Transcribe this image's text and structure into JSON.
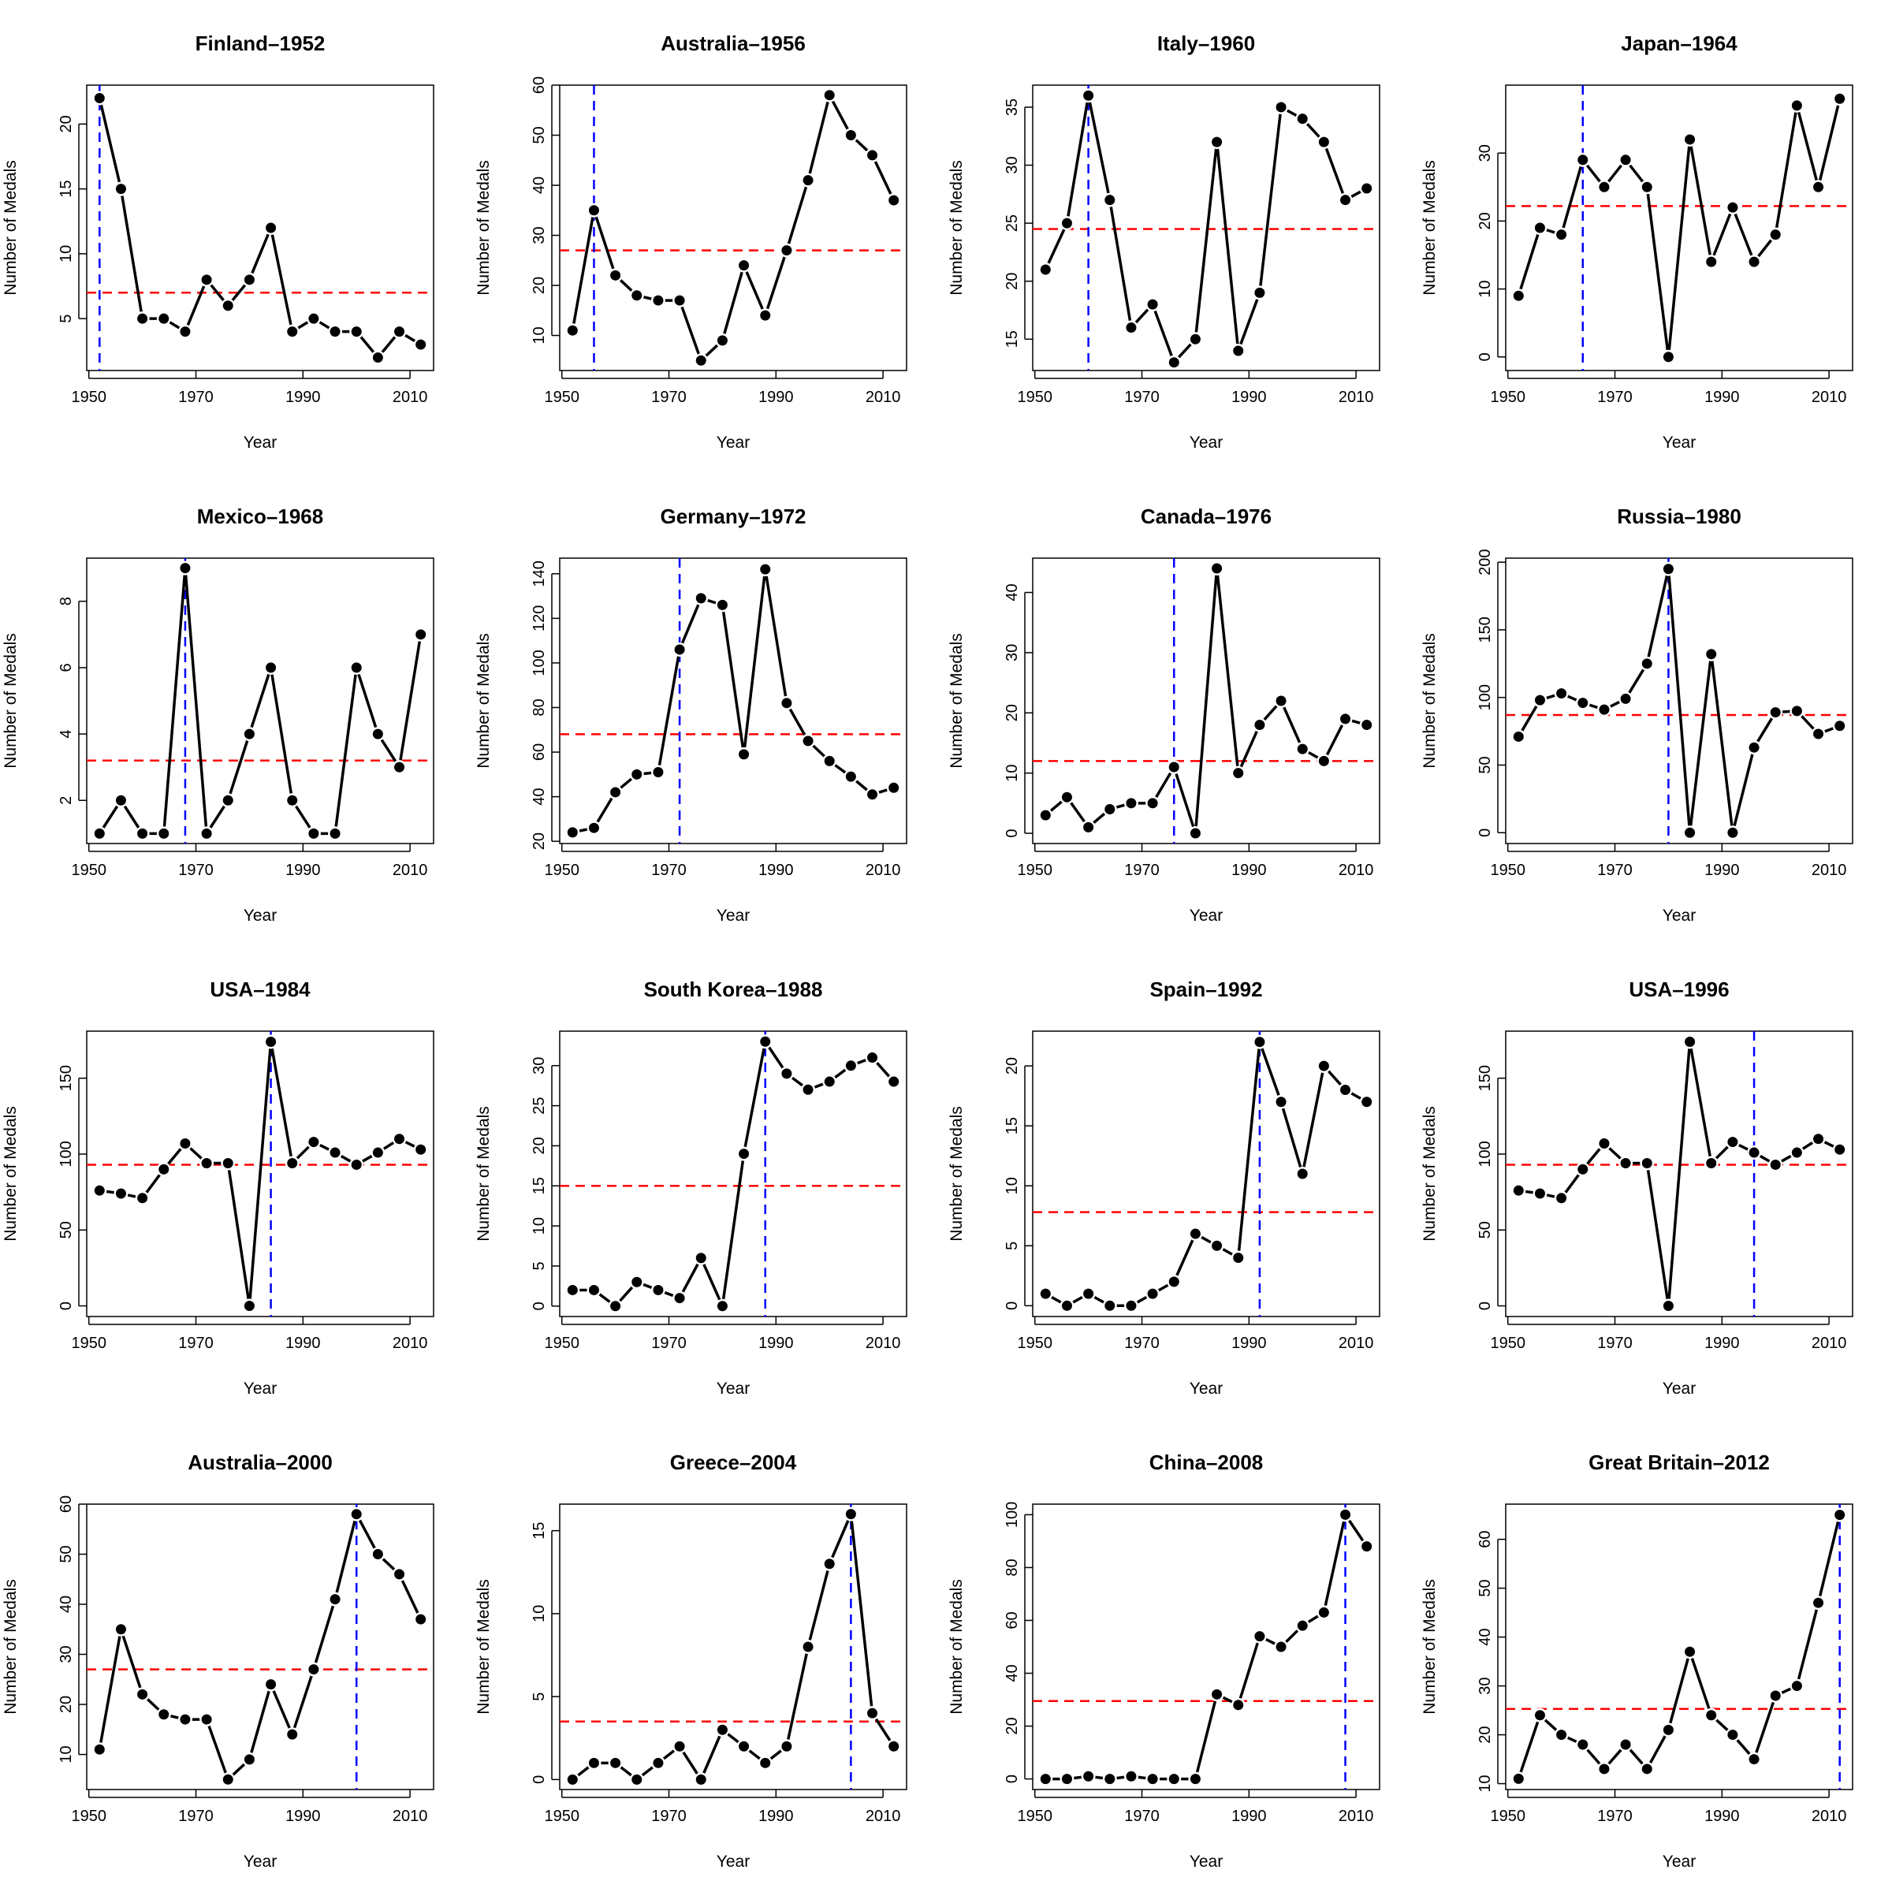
{
  "chart_data": [
    {
      "type": "line",
      "title": "Finland–1952",
      "xlabel": "Year",
      "ylabel": "Number of Medals",
      "host_year": 1952,
      "mean": 7,
      "ylim": [
        1,
        23
      ],
      "yticks": [
        5,
        10,
        15,
        20
      ],
      "x": [
        1952,
        1956,
        1960,
        1964,
        1968,
        1972,
        1976,
        1980,
        1984,
        1988,
        1992,
        1996,
        2000,
        2004,
        2008,
        2012
      ],
      "values": [
        22,
        15,
        5,
        5,
        4,
        8,
        6,
        8,
        12,
        4,
        5,
        4,
        4,
        2,
        4,
        3
      ]
    },
    {
      "type": "line",
      "title": "Australia–1956",
      "xlabel": "Year",
      "ylabel": "Number of Medals",
      "host_year": 1956,
      "mean": 27,
      "ylim": [
        3,
        60
      ],
      "yticks": [
        10,
        20,
        30,
        40,
        50,
        60
      ],
      "x": [
        1952,
        1956,
        1960,
        1964,
        1968,
        1972,
        1976,
        1980,
        1984,
        1988,
        1992,
        1996,
        2000,
        2004,
        2008,
        2012
      ],
      "values": [
        11,
        35,
        22,
        18,
        17,
        17,
        5,
        9,
        24,
        14,
        27,
        41,
        58,
        50,
        46,
        37
      ]
    },
    {
      "type": "line",
      "title": "Italy–1960",
      "xlabel": "Year",
      "ylabel": "Number of Medals",
      "host_year": 1960,
      "mean": 24.5,
      "ylim": [
        12.3,
        36.9
      ],
      "yticks": [
        15,
        20,
        25,
        30,
        35
      ],
      "x": [
        1952,
        1956,
        1960,
        1964,
        1968,
        1972,
        1976,
        1980,
        1984,
        1988,
        1992,
        1996,
        2000,
        2004,
        2008,
        2012
      ],
      "values": [
        21,
        25,
        36,
        27,
        16,
        18,
        13,
        15,
        32,
        14,
        19,
        35,
        34,
        32,
        27,
        28
      ]
    },
    {
      "type": "line",
      "title": "Japan–1964",
      "xlabel": "Year",
      "ylabel": "Number of Medals",
      "host_year": 1964,
      "mean": 22.2,
      "ylim": [
        -2,
        40
      ],
      "yticks": [
        0,
        10,
        20,
        30
      ],
      "x": [
        1952,
        1956,
        1960,
        1964,
        1968,
        1972,
        1976,
        1980,
        1984,
        1988,
        1992,
        1996,
        2000,
        2004,
        2008,
        2012
      ],
      "values": [
        9,
        19,
        18,
        29,
        25,
        29,
        25,
        0,
        32,
        14,
        22,
        14,
        18,
        37,
        25,
        38
      ]
    },
    {
      "type": "line",
      "title": "Mexico–1968",
      "xlabel": "Year",
      "ylabel": "Number of Medals",
      "host_year": 1968,
      "mean": 3.2,
      "ylim": [
        0.7,
        9.3
      ],
      "yticks": [
        2,
        4,
        6,
        8
      ],
      "x": [
        1952,
        1956,
        1960,
        1964,
        1968,
        1972,
        1976,
        1980,
        1984,
        1988,
        1992,
        1996,
        2000,
        2004,
        2008,
        2012
      ],
      "values": [
        1,
        2,
        1,
        1,
        9,
        1,
        2,
        4,
        6,
        2,
        1,
        1,
        6,
        4,
        3,
        7
      ]
    },
    {
      "type": "line",
      "title": "Germany–1972",
      "xlabel": "Year",
      "ylabel": "Number of Medals",
      "host_year": 1972,
      "mean": 68,
      "ylim": [
        19,
        147
      ],
      "yticks": [
        20,
        40,
        60,
        80,
        100,
        120,
        140
      ],
      "x": [
        1952,
        1956,
        1960,
        1964,
        1968,
        1972,
        1976,
        1980,
        1984,
        1988,
        1992,
        1996,
        2000,
        2004,
        2008,
        2012
      ],
      "values": [
        24,
        26,
        42,
        50,
        51,
        106,
        129,
        126,
        59,
        142,
        82,
        65,
        56,
        49,
        41,
        44
      ]
    },
    {
      "type": "line",
      "title": "Canada–1976",
      "xlabel": "Year",
      "ylabel": "Number of Medals",
      "host_year": 1976,
      "mean": 12,
      "ylim": [
        -1.7,
        45.7
      ],
      "yticks": [
        0,
        10,
        20,
        30,
        40
      ],
      "x": [
        1952,
        1956,
        1960,
        1964,
        1968,
        1972,
        1976,
        1980,
        1984,
        1988,
        1992,
        1996,
        2000,
        2004,
        2008,
        2012
      ],
      "values": [
        3,
        6,
        1,
        4,
        5,
        5,
        11,
        0,
        44,
        10,
        18,
        22,
        14,
        12,
        19,
        18
      ]
    },
    {
      "type": "line",
      "title": "Russia–1980",
      "xlabel": "Year",
      "ylabel": "Number of Medals",
      "host_year": 1980,
      "mean": 87,
      "ylim": [
        -8,
        203
      ],
      "yticks": [
        0,
        50,
        100,
        150,
        200
      ],
      "x": [
        1952,
        1956,
        1960,
        1964,
        1968,
        1972,
        1976,
        1980,
        1984,
        1988,
        1992,
        1996,
        2000,
        2004,
        2008,
        2012
      ],
      "values": [
        71,
        98,
        103,
        96,
        91,
        99,
        125,
        195,
        0,
        132,
        0,
        63,
        89,
        90,
        73,
        79
      ]
    },
    {
      "type": "line",
      "title": "USA–1984",
      "xlabel": "Year",
      "ylabel": "Number of Medals",
      "host_year": 1984,
      "mean": 93,
      "ylim": [
        -7,
        181
      ],
      "yticks": [
        0,
        50,
        100,
        150
      ],
      "x": [
        1952,
        1956,
        1960,
        1964,
        1968,
        1972,
        1976,
        1980,
        1984,
        1988,
        1992,
        1996,
        2000,
        2004,
        2008,
        2012
      ],
      "values": [
        76,
        74,
        71,
        90,
        107,
        94,
        94,
        0,
        174,
        94,
        108,
        101,
        93,
        101,
        110,
        103
      ]
    },
    {
      "type": "line",
      "title": "South Korea–1988",
      "xlabel": "Year",
      "ylabel": "Number of Medals",
      "host_year": 1988,
      "mean": 15,
      "ylim": [
        -1.3,
        34.3
      ],
      "yticks": [
        0,
        5,
        10,
        15,
        20,
        25,
        30
      ],
      "x": [
        1952,
        1956,
        1960,
        1964,
        1968,
        1972,
        1976,
        1980,
        1984,
        1988,
        1992,
        1996,
        2000,
        2004,
        2008,
        2012
      ],
      "values": [
        2,
        2,
        0,
        3,
        2,
        1,
        6,
        0,
        19,
        33,
        29,
        27,
        28,
        30,
        31,
        28
      ]
    },
    {
      "type": "line",
      "title": "Spain–1992",
      "xlabel": "Year",
      "ylabel": "Number of Medals",
      "host_year": 1992,
      "mean": 7.8,
      "ylim": [
        -0.9,
        22.9
      ],
      "yticks": [
        0,
        5,
        10,
        15,
        20
      ],
      "x": [
        1952,
        1956,
        1960,
        1964,
        1968,
        1972,
        1976,
        1980,
        1984,
        1988,
        1992,
        1996,
        2000,
        2004,
        2008,
        2012
      ],
      "values": [
        1,
        0,
        1,
        0,
        0,
        1,
        2,
        6,
        5,
        4,
        22,
        17,
        11,
        20,
        18,
        17
      ]
    },
    {
      "type": "line",
      "title": "USA–1996",
      "xlabel": "Year",
      "ylabel": "Number of Medals",
      "host_year": 1996,
      "mean": 93,
      "ylim": [
        -7,
        181
      ],
      "yticks": [
        0,
        50,
        100,
        150
      ],
      "x": [
        1952,
        1956,
        1960,
        1964,
        1968,
        1972,
        1976,
        1980,
        1984,
        1988,
        1992,
        1996,
        2000,
        2004,
        2008,
        2012
      ],
      "values": [
        76,
        74,
        71,
        90,
        107,
        94,
        94,
        0,
        174,
        94,
        108,
        101,
        93,
        101,
        110,
        103
      ]
    },
    {
      "type": "line",
      "title": "Australia–2000",
      "xlabel": "Year",
      "ylabel": "Number of Medals",
      "host_year": 2000,
      "mean": 27,
      "ylim": [
        3,
        60
      ],
      "yticks": [
        10,
        20,
        30,
        40,
        50,
        60
      ],
      "x": [
        1952,
        1956,
        1960,
        1964,
        1968,
        1972,
        1976,
        1980,
        1984,
        1988,
        1992,
        1996,
        2000,
        2004,
        2008,
        2012
      ],
      "values": [
        11,
        35,
        22,
        18,
        17,
        17,
        5,
        9,
        24,
        14,
        27,
        41,
        58,
        50,
        46,
        37
      ]
    },
    {
      "type": "line",
      "title": "Greece–2004",
      "xlabel": "Year",
      "ylabel": "Number of Medals",
      "host_year": 2004,
      "mean": 3.5,
      "ylim": [
        -0.6,
        16.6
      ],
      "yticks": [
        0,
        5,
        10,
        15
      ],
      "x": [
        1952,
        1956,
        1960,
        1964,
        1968,
        1972,
        1976,
        1980,
        1984,
        1988,
        1992,
        1996,
        2000,
        2004,
        2008,
        2012
      ],
      "values": [
        0,
        1,
        1,
        0,
        1,
        2,
        0,
        3,
        2,
        1,
        2,
        8,
        13,
        16,
        4,
        2
      ]
    },
    {
      "type": "line",
      "title": "China–2008",
      "xlabel": "Year",
      "ylabel": "Number of Medals",
      "host_year": 2008,
      "mean": 29.5,
      "ylim": [
        -4,
        104
      ],
      "yticks": [
        0,
        20,
        40,
        60,
        80,
        100
      ],
      "x": [
        1952,
        1956,
        1960,
        1964,
        1968,
        1972,
        1976,
        1980,
        1984,
        1988,
        1992,
        1996,
        2000,
        2004,
        2008,
        2012
      ],
      "values": [
        0,
        0,
        1,
        0,
        1,
        0,
        0,
        0,
        32,
        28,
        54,
        50,
        58,
        63,
        100,
        88
      ]
    },
    {
      "type": "line",
      "title": "Great Britain–2012",
      "xlabel": "Year",
      "ylabel": "Number of Medals",
      "host_year": 2012,
      "mean": 25.3,
      "ylim": [
        8.8,
        67.2
      ],
      "yticks": [
        10,
        20,
        30,
        40,
        50,
        60
      ],
      "x": [
        1952,
        1956,
        1960,
        1964,
        1968,
        1972,
        1976,
        1980,
        1984,
        1988,
        1992,
        1996,
        2000,
        2004,
        2008,
        2012
      ],
      "values": [
        11,
        24,
        20,
        18,
        13,
        18,
        13,
        21,
        37,
        24,
        20,
        15,
        28,
        30,
        47,
        65
      ]
    }
  ],
  "x_axis": {
    "xlim": [
      1949.6,
      2014.4
    ],
    "xticks": [
      1950,
      1970,
      1990,
      2010
    ]
  }
}
